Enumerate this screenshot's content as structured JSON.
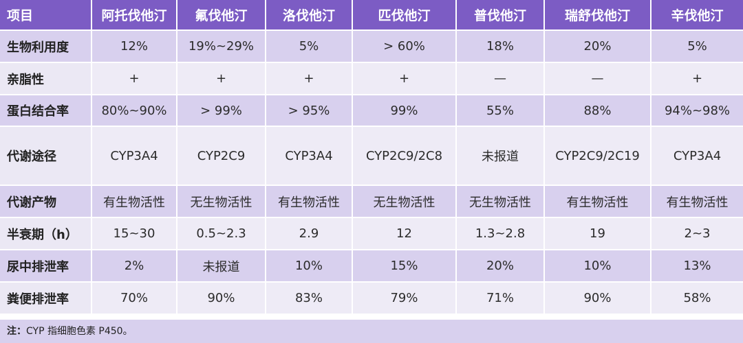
{
  "table": {
    "header": [
      "项目",
      "阿托伐他汀",
      "氟伐他汀",
      "洛伐他汀",
      "匹伐他汀",
      "普伐他汀",
      "瑞舒伐他汀",
      "辛伐他汀"
    ],
    "rows": [
      {
        "label": "生物利用度",
        "values": [
          "12%",
          "19%~29%",
          "5%",
          "> 60%",
          "18%",
          "20%",
          "5%"
        ]
      },
      {
        "label": "亲脂性",
        "values": [
          "+",
          "+",
          "+",
          "+",
          "—",
          "—",
          "+"
        ]
      },
      {
        "label": "蛋白结合率",
        "values": [
          "80%~90%",
          "> 99%",
          "> 95%",
          "99%",
          "55%",
          "88%",
          "94%~98%"
        ]
      },
      {
        "label": "代谢途径",
        "values": [
          "CYP3A4",
          "CYP2C9",
          "CYP3A4",
          "CYP2C9/2C8",
          "未报道",
          "CYP2C9/2C19",
          "CYP3A4"
        ]
      },
      {
        "label": "代谢产物",
        "values": [
          "有生物活性",
          "无生物活性",
          "有生物活性",
          "无生物活性",
          "无生物活性",
          "有生物活性",
          "有生物活性"
        ]
      },
      {
        "label": "半衰期（h）",
        "values": [
          "15~30",
          "0.5~2.3",
          "2.9",
          "12",
          "1.3~2.8",
          "19",
          "2~3"
        ]
      },
      {
        "label": "尿中排泄率",
        "values": [
          "2%",
          "未报道",
          "10%",
          "15%",
          "20%",
          "10%",
          "13%"
        ]
      },
      {
        "label": "粪便排泄率",
        "values": [
          "70%",
          "90%",
          "83%",
          "79%",
          "71%",
          "90%",
          "58%"
        ]
      }
    ]
  },
  "note": {
    "label": "注：",
    "text": "CYP 指细胞色素 P450。"
  },
  "colors": {
    "header_bg": "#7c5cc4",
    "row_dark": "#d8d0ee",
    "row_light": "#eeebf6"
  }
}
